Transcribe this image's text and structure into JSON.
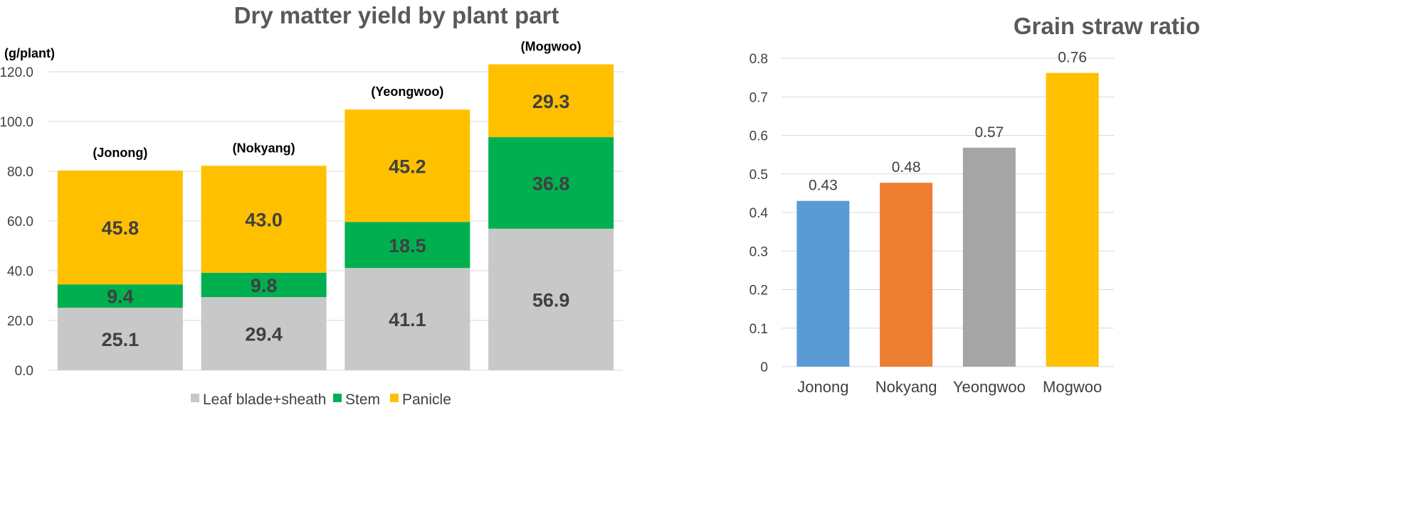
{
  "chart_data": [
    {
      "type": "bar",
      "stacked": true,
      "title": "Dry matter yield by plant part",
      "ylabel": "(g/plant)",
      "ylim": [
        0,
        120
      ],
      "yticks": [
        "0.0",
        "20.0",
        "40.0",
        "60.0",
        "80.0",
        "100.0",
        "120.0"
      ],
      "categories": [
        "(Jonong)",
        "(Nokyang)",
        "(Yeongwoo)",
        "(Mogwoo)"
      ],
      "series": [
        {
          "name": "Leaf blade+sheath",
          "color": "#c8c8c8",
          "values": [
            25.1,
            29.4,
            41.1,
            56.9
          ],
          "labels": [
            "25.1",
            "29.4",
            "41.1",
            "56.9"
          ]
        },
        {
          "name": "Stem",
          "color": "#00b050",
          "values": [
            9.4,
            9.8,
            18.5,
            36.8
          ],
          "labels": [
            "9.4",
            "9.8",
            "18.5",
            "36.8"
          ]
        },
        {
          "name": "Panicle",
          "color": "#ffc000",
          "values": [
            45.8,
            43.0,
            45.2,
            29.3
          ],
          "labels": [
            "45.8",
            "43.0",
            "45.2",
            "29.3"
          ]
        }
      ],
      "grid": true,
      "legend": "bottom"
    },
    {
      "type": "bar",
      "title": "Grain straw ratio",
      "xlabel": "",
      "ylabel": "",
      "ylim": [
        0,
        0.8
      ],
      "yticks": [
        "0",
        "0.1",
        "0.2",
        "0.3",
        "0.4",
        "0.5",
        "0.6",
        "0.7",
        "0.8"
      ],
      "categories": [
        "Jonong",
        "Nokyang",
        "Yeongwoo",
        "Mogwoo"
      ],
      "values": [
        0.43,
        0.477,
        0.568,
        0.762
      ],
      "value_labels": [
        "0.43",
        "0.48",
        "0.57",
        "0.76"
      ],
      "colors": [
        "#5b9bd5",
        "#ed7d31",
        "#a5a5a5",
        "#ffc000"
      ],
      "grid": true,
      "legend": "none"
    }
  ]
}
